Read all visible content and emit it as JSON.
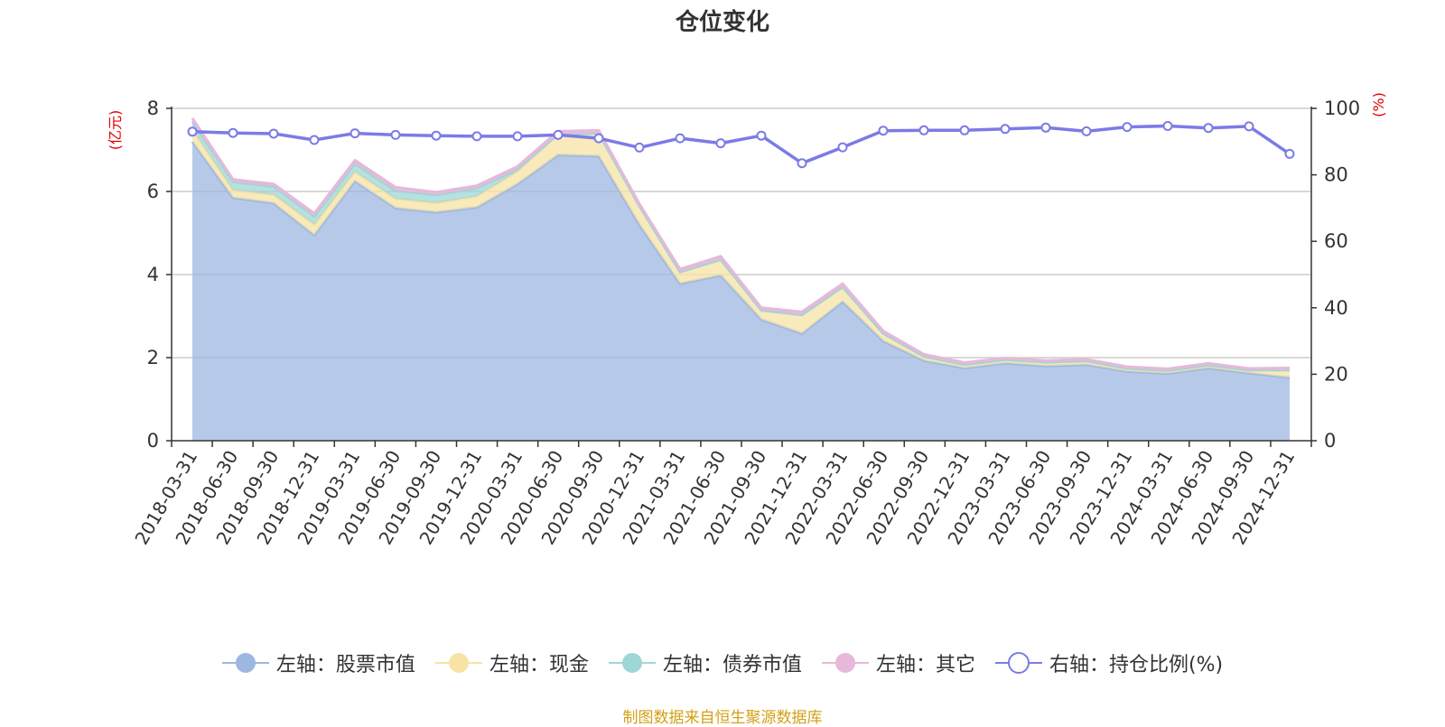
{
  "title": "仓位变化",
  "source": "制图数据来自恒生聚源数据库",
  "chart_data": {
    "type": "area",
    "title": "仓位变化",
    "y_left_label": "(亿元)",
    "y_right_label": "(%)",
    "y_left_lim": [
      0,
      8
    ],
    "y_left_ticks": [
      "0",
      "2",
      "4",
      "6",
      "8"
    ],
    "y_right_lim": [
      0,
      100
    ],
    "y_right_ticks": [
      "0",
      "20",
      "40",
      "60",
      "80",
      "100"
    ],
    "grid": true,
    "legend_position": "bottom",
    "x": [
      "2018-03-31",
      "2018-06-30",
      "2018-09-30",
      "2018-12-31",
      "2019-03-31",
      "2019-06-30",
      "2019-09-30",
      "2019-12-31",
      "2020-03-31",
      "2020-06-30",
      "2020-09-30",
      "2020-12-31",
      "2021-03-31",
      "2021-06-30",
      "2021-09-30",
      "2021-12-31",
      "2022-03-31",
      "2022-06-30",
      "2022-09-30",
      "2022-12-31",
      "2023-03-31",
      "2023-06-30",
      "2023-09-30",
      "2023-12-31",
      "2024-03-31",
      "2024-06-30",
      "2024-09-30",
      "2024-12-31"
    ],
    "series": [
      {
        "name": "左轴：股票市值",
        "axis": "left",
        "kind": "stacked-area",
        "color": "#9db7e0",
        "values": [
          7.2,
          5.85,
          5.72,
          4.95,
          6.25,
          5.6,
          5.5,
          5.62,
          6.18,
          6.88,
          6.85,
          5.2,
          3.78,
          3.98,
          2.92,
          2.58,
          3.35,
          2.4,
          1.93,
          1.75,
          1.87,
          1.8,
          1.83,
          1.67,
          1.62,
          1.75,
          1.63,
          1.52
        ]
      },
      {
        "name": "左轴：现金",
        "axis": "left",
        "kind": "stacked-area",
        "color": "#f7e3a6",
        "values": [
          0.28,
          0.18,
          0.2,
          0.25,
          0.22,
          0.22,
          0.22,
          0.26,
          0.3,
          0.5,
          0.55,
          0.45,
          0.28,
          0.38,
          0.22,
          0.45,
          0.35,
          0.18,
          0.1,
          0.08,
          0.08,
          0.09,
          0.09,
          0.07,
          0.07,
          0.07,
          0.07,
          0.18
        ]
      },
      {
        "name": "左轴：债券市值",
        "axis": "left",
        "kind": "stacked-area",
        "color": "#9fd6d6",
        "values": [
          0.2,
          0.2,
          0.2,
          0.2,
          0.2,
          0.2,
          0.2,
          0.2,
          0.05,
          0,
          0,
          0,
          0,
          0,
          0,
          0,
          0,
          0,
          0,
          0,
          0,
          0,
          0,
          0,
          0,
          0,
          0,
          0
        ]
      },
      {
        "name": "左轴：其它",
        "axis": "left",
        "kind": "stacked-area",
        "color": "#e6b8da",
        "values": [
          0.08,
          0.06,
          0.06,
          0.07,
          0.08,
          0.08,
          0.06,
          0.06,
          0.07,
          0.07,
          0.07,
          0.05,
          0.07,
          0.08,
          0.06,
          0.07,
          0.08,
          0.06,
          0.05,
          0.05,
          0.04,
          0.04,
          0.04,
          0.04,
          0.04,
          0.04,
          0.04,
          0.05
        ]
      },
      {
        "name": "右轴：持仓比例(%)",
        "axis": "right",
        "kind": "line",
        "color": "#7b7be6",
        "values": [
          93,
          92.6,
          92.4,
          90.5,
          92.5,
          92,
          91.8,
          91.6,
          91.6,
          92,
          91,
          88.2,
          91,
          89.5,
          91.8,
          83.5,
          88.3,
          93.3,
          93.4,
          93.4,
          93.8,
          94.2,
          93.1,
          94.4,
          94.7,
          94.1,
          94.6,
          86.3
        ]
      }
    ]
  }
}
